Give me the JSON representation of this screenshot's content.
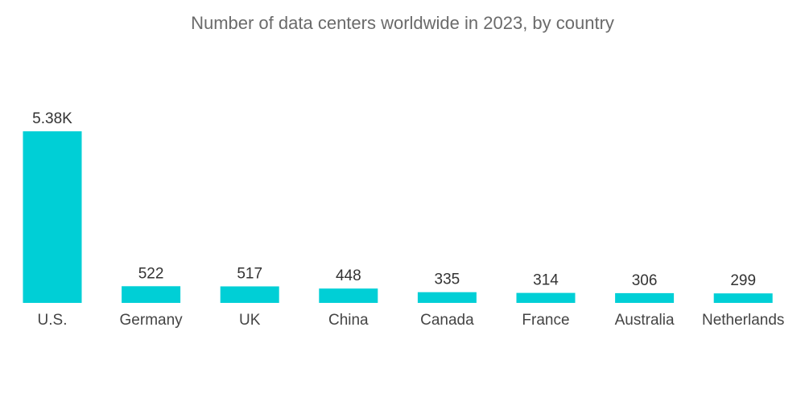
{
  "chart_data": {
    "type": "bar",
    "title": "Number of data centers worldwide in 2023, by country",
    "xlabel": "",
    "ylabel": "",
    "categories": [
      "U.S.",
      "Germany",
      "UK",
      "China",
      "Canada",
      "France",
      "Australia",
      "Netherlands"
    ],
    "values": [
      5375,
      522,
      517,
      448,
      335,
      314,
      306,
      299
    ],
    "value_labels": [
      "5.38K",
      "522",
      "517",
      "448",
      "335",
      "314",
      "306",
      "299"
    ],
    "ylim": [
      0,
      5375
    ],
    "grid": false,
    "legend": "none",
    "bar_color": "#00CFD6"
  }
}
